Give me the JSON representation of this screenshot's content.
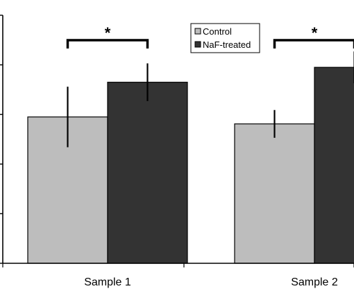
{
  "chart_data": {
    "type": "bar",
    "categories": [
      "Sample 1",
      "Sample 2"
    ],
    "series": [
      {
        "name": "Control",
        "color": "#bdbdbd",
        "values": [
          2.95,
          2.81
        ],
        "error": [
          0.61,
          0.28
        ]
      },
      {
        "name": "NaF-treated",
        "color": "#333333",
        "values": [
          3.65,
          3.95
        ],
        "error": [
          0.38,
          0.32
        ]
      }
    ],
    "ylim": [
      0,
      5
    ],
    "yticks": [
      0,
      1,
      2,
      3,
      4,
      5
    ],
    "legend": "top-center",
    "grid": false,
    "significance": [
      {
        "category": "Sample 1",
        "label": "*"
      },
      {
        "category": "Sample 2",
        "label": "*"
      }
    ]
  }
}
